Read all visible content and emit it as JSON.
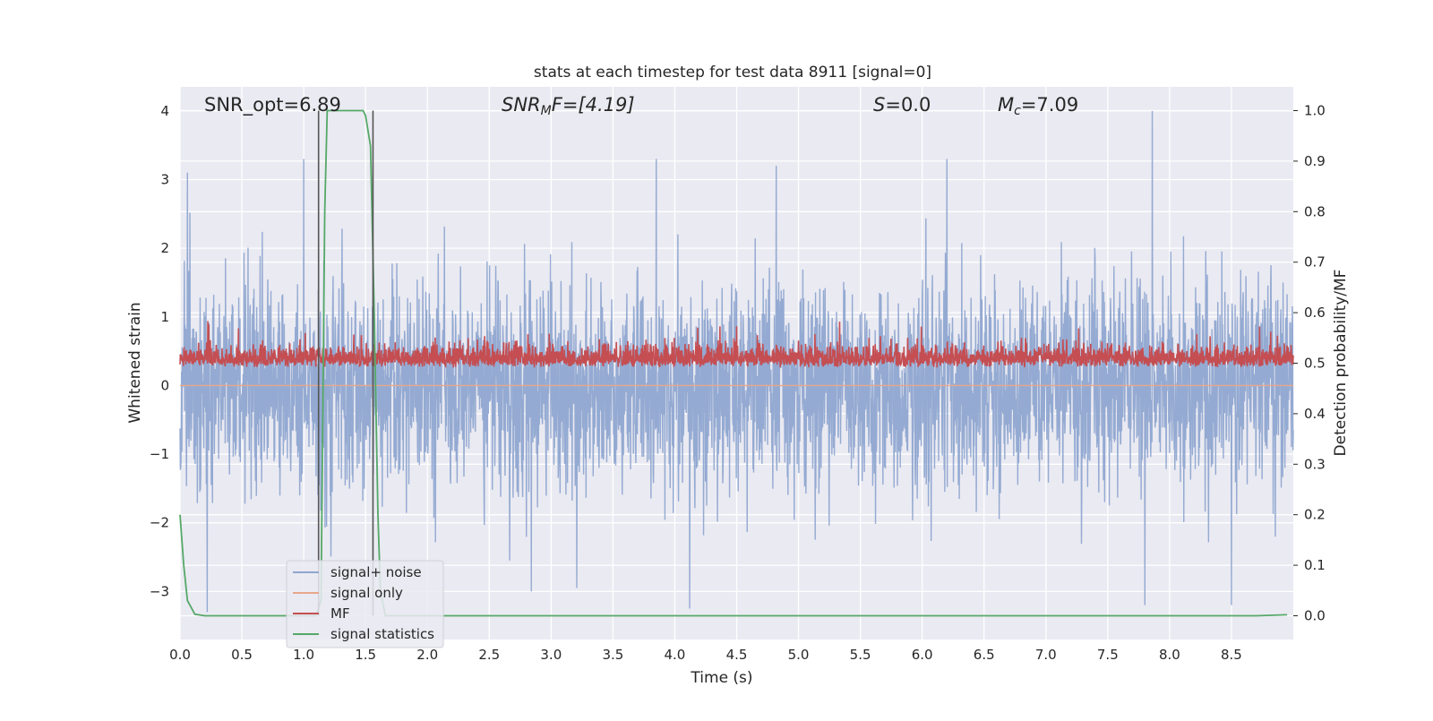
{
  "chart_data": {
    "type": "line",
    "title": "stats at each timestep for test data 8911 [signal=0]",
    "xlabel": "Time (s)",
    "ylabel": "Whitened strain",
    "y2label": "Detection probability/MF",
    "xlim": [
      0.0,
      9.0
    ],
    "ylim": [
      -3.7,
      4.35
    ],
    "y2lim": [
      -0.047,
      1.047
    ],
    "grid": true,
    "legend_position": "lower-left",
    "xticks": [
      "0.0",
      "0.5",
      "1.0",
      "1.5",
      "2.0",
      "2.5",
      "3.0",
      "3.5",
      "4.0",
      "4.5",
      "5.0",
      "5.5",
      "6.0",
      "6.5",
      "7.0",
      "7.5",
      "8.0",
      "8.5"
    ],
    "yticks": [
      "−3",
      "−2",
      "−1",
      "0",
      "1",
      "2",
      "3",
      "4"
    ],
    "y2ticks": [
      "0.0",
      "0.1",
      "0.2",
      "0.3",
      "0.4",
      "0.5",
      "0.6",
      "0.7",
      "0.8",
      "0.9",
      "1.0"
    ],
    "annotations": {
      "snr_opt": "SNR_opt=6.89",
      "snr_mf_base": "SNR",
      "snr_mf_sub": "M",
      "snr_mf_rest": "F=[4.19]",
      "s_stat": "S",
      "s_val": "=0.0",
      "mc_base": "M",
      "mc_sub": "c",
      "mc_val": "=7.09"
    },
    "vertical_lines": [
      1.12,
      1.56
    ],
    "series": [
      {
        "name": "signal+ noise",
        "color": "#8fa6d0",
        "axis": "left",
        "sample_rate_hz": 400,
        "std": 0.75,
        "peaks": [
          {
            "x": 0.06,
            "y": 3.1
          },
          {
            "x": 0.22,
            "y": -3.3
          },
          {
            "x": 1.0,
            "y": 3.3
          },
          {
            "x": 2.84,
            "y": -3.0
          },
          {
            "x": 3.85,
            "y": 3.3
          },
          {
            "x": 4.12,
            "y": -3.25
          },
          {
            "x": 4.82,
            "y": 3.2
          },
          {
            "x": 6.2,
            "y": 3.3
          },
          {
            "x": 7.8,
            "y": -3.2
          },
          {
            "x": 7.86,
            "y": 4.0
          },
          {
            "x": 8.5,
            "y": -3.2
          }
        ]
      },
      {
        "name": "signal only",
        "color": "#e8a78a",
        "axis": "left",
        "value": 0.0
      },
      {
        "name": "MF",
        "color": "#c44e52",
        "axis": "left",
        "sample_rate_hz": 400,
        "baseline": 0.3,
        "spread": 0.25,
        "max": 1.0
      },
      {
        "name": "signal statistics",
        "color": "#55a868",
        "axis": "right",
        "points": [
          [
            0.0,
            0.2
          ],
          [
            0.03,
            0.1
          ],
          [
            0.06,
            0.03
          ],
          [
            0.12,
            0.003
          ],
          [
            0.2,
            0.0
          ],
          [
            1.1,
            0.0
          ],
          [
            1.14,
            0.03
          ],
          [
            1.17,
            0.8
          ],
          [
            1.19,
            1.0
          ],
          [
            1.48,
            1.0
          ],
          [
            1.5,
            0.99
          ],
          [
            1.54,
            0.93
          ],
          [
            1.57,
            0.6
          ],
          [
            1.6,
            0.2
          ],
          [
            1.62,
            0.05
          ],
          [
            1.66,
            0.0
          ],
          [
            8.7,
            0.0
          ],
          [
            8.95,
            0.002
          ]
        ]
      }
    ]
  }
}
